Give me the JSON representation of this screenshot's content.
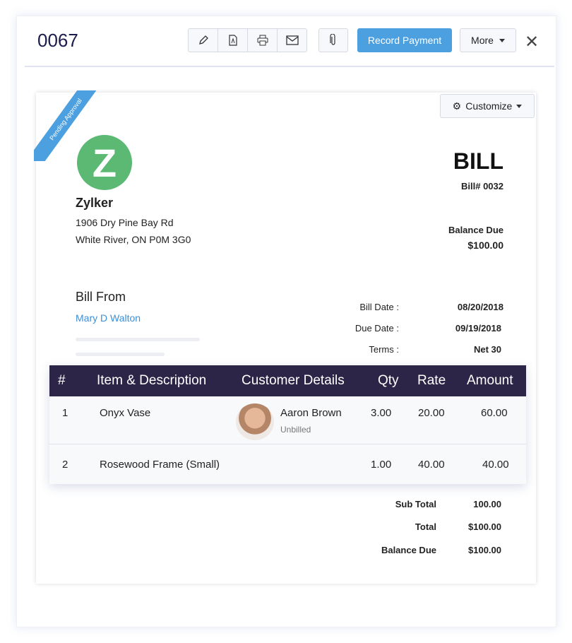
{
  "header": {
    "title": "0067",
    "record_payment": "Record Payment",
    "more": "More",
    "close": "✕",
    "icons": [
      "pencil-icon",
      "pdf-icon",
      "printer-icon",
      "mail-icon",
      "paperclip-icon"
    ]
  },
  "ribbon": "Pending Approval",
  "customize": "Customize",
  "company": {
    "logo_letter": "Z",
    "name": "Zylker",
    "address1": "1906 Dry Pine Bay Rd",
    "address2": "White River, ON P0M 3G0"
  },
  "bill": {
    "title": "BILL",
    "number": "Bill# 0032",
    "balance_label": "Balance Due",
    "balance": "$100.00"
  },
  "bill_from": {
    "label": "Bill From",
    "vendor": "Mary D Walton"
  },
  "meta": [
    {
      "label": "Bill Date :",
      "value": "08/20/2018"
    },
    {
      "label": "Due Date :",
      "value": "09/19/2018"
    },
    {
      "label": "Terms :",
      "value": "Net 30"
    }
  ],
  "table": {
    "headers": [
      "#",
      "Item & Description",
      "Customer Details",
      "Qty",
      "Rate",
      "Amount"
    ],
    "rows": [
      {
        "num": "1",
        "item": "Onyx Vase",
        "customer": "Aaron Brown",
        "status": "Unbilled",
        "qty": "3.00",
        "rate": "20.00",
        "amount": "60.00"
      },
      {
        "num": "2",
        "item": "Rosewood Frame (Small)",
        "qty": "1.00",
        "rate": "40.00",
        "amount": "40.00"
      }
    ]
  },
  "totals": [
    {
      "label": "Sub Total",
      "value": "100.00"
    },
    {
      "label": "Total",
      "value": "$100.00"
    },
    {
      "label": "Balance Due",
      "value": "$100.00"
    }
  ],
  "colors": {
    "accent": "#4ca0e0",
    "table_header": "#2d2547",
    "logo": "#5bb974"
  }
}
